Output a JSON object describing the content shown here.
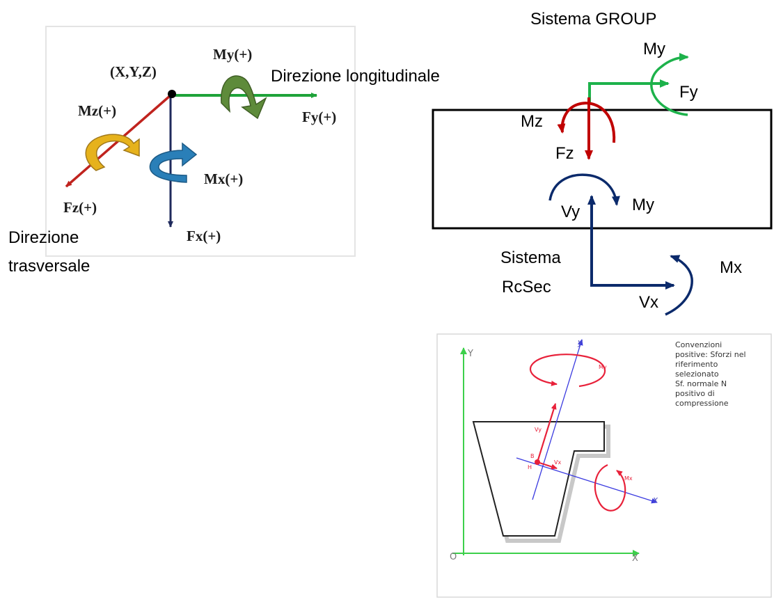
{
  "panel1": {
    "origin_label": "(X,Y,Z)",
    "my_label": "My(+)",
    "long_dir_label": "Direzione longitudinale",
    "fy_label": "Fy(+)",
    "mz_label": "Mz(+)",
    "mx_label": "Mx(+)",
    "fz_label": "Fz(+)",
    "fx_label": "Fx(+)",
    "trasv_line1": "Direzione",
    "trasv_line2": "trasversale",
    "colors": {
      "fy": "#1fa33a",
      "fz": "#c0231e",
      "fx": "#1f2a5c",
      "my": "#5e8b3a",
      "mz": "#e6b21c",
      "mx": "#2a7fb8"
    }
  },
  "panel2": {
    "title": "Sistema GROUP",
    "my_top": "My",
    "fy": "Fy",
    "mz": "Mz",
    "fz": "Fz",
    "vy": "Vy",
    "my_mid": "My",
    "sistema_line1": "Sistema",
    "sistema_line2": "RcSec",
    "mx": "Mx",
    "vx": "Vx",
    "colors": {
      "green": "#1db24b",
      "red": "#c00000",
      "navy": "#0b2a6b"
    }
  },
  "panel3": {
    "axis_y": "Y",
    "axis_x": "X",
    "origin": "O",
    "local_y": "y",
    "local_x": "x",
    "my_label": "My",
    "mx_label": "Mx",
    "vy_label": "Vy",
    "vx_label": "Vx",
    "b_label": "B",
    "h_label": "H",
    "note_lines": [
      "Convenzioni",
      "positive: Sforzi nel",
      "riferimento",
      "selezionato",
      "Sf. normale N",
      "positivo di",
      "compressione"
    ]
  }
}
